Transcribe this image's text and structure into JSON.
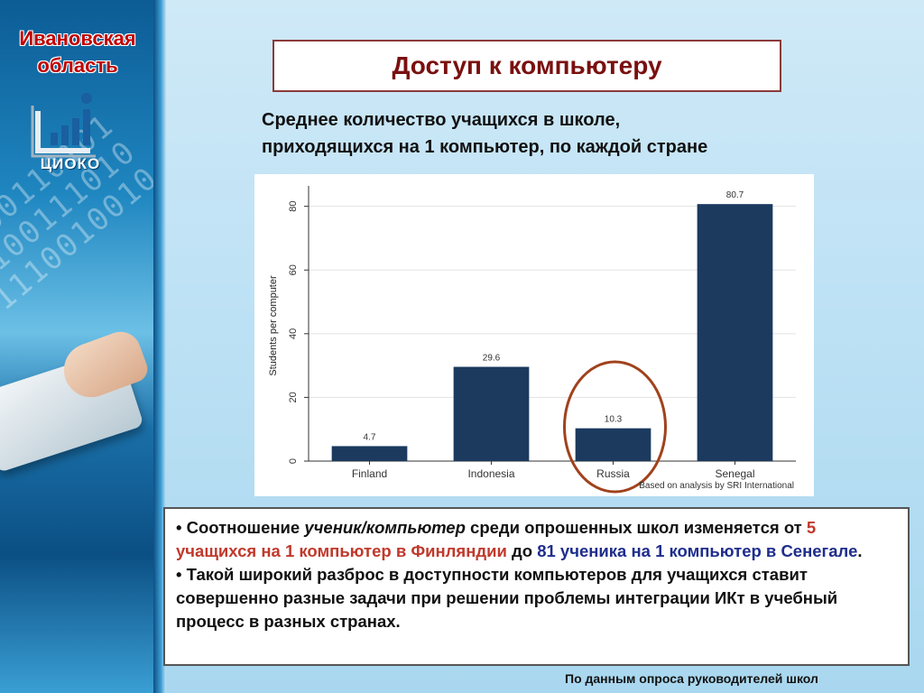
{
  "brand": {
    "region_line1": "Ивановская",
    "region_line2": "область",
    "logo_text": "ЦИОКО",
    "side_digits": "1000110101 0100111010 1110010010"
  },
  "title": "Доступ к компьютеру",
  "subtitle_line1": "Среднее  количество учащихся в школе,",
  "subtitle_line2": "приходящихся на 1 компьютер, по каждой стране",
  "chart_data": {
    "type": "bar",
    "categories": [
      "Finland",
      "Indonesia",
      "Russia",
      "Senegal"
    ],
    "values": [
      4.7,
      29.6,
      10.3,
      80.7
    ],
    "value_labels": [
      "4.7",
      "29.6",
      "10.3",
      "80.7"
    ],
    "ylabel": "Students per computer",
    "xlabel": "",
    "ylim": [
      0,
      85
    ],
    "yticks": [
      0,
      20,
      40,
      60,
      80
    ],
    "grid": true,
    "bar_color": "#1b3a5e",
    "source_note": "Based on analysis by SRI International",
    "highlight_category": "Russia",
    "highlight_color": "#a0421c"
  },
  "bullets": {
    "b1_prefix": "• Соотношение ",
    "b1_italic": "ученик/компьютер",
    "b1_mid": " среди опрошенных школ изменяется от ",
    "b1_red": "5 учащихся на 1 компьютер в Финляндии",
    "b1_to": " до ",
    "b1_blue": "81 ученика на 1 компьютер в Сенегале",
    "b1_end": ".",
    "b2": "• Такой широкий разброс в доступности компьютеров для учащихся ставит совершенно разные задачи при решении проблемы интеграции ИКт в учебный процесс в разных странах."
  },
  "footnote": "По данным опроса руководителей школ"
}
